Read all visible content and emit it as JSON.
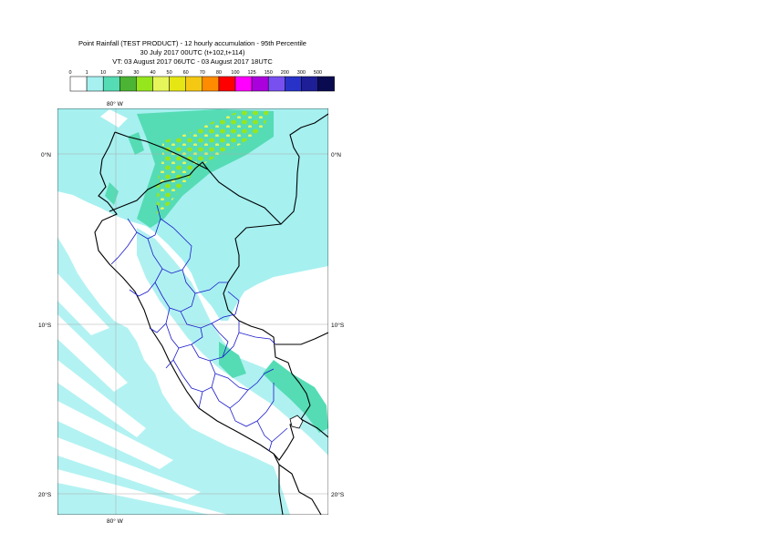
{
  "title": {
    "line1": "Point Rainfall (TEST PRODUCT) - 12 hourly accumulation - 95th Percentile",
    "line2": "30 July 2017 00UTC (t+102,t+114)",
    "line3": "VT: 03 August 2017 06UTC - 03 August 2017 18UTC"
  },
  "legend": {
    "thresholds": [
      "0",
      "1",
      "10",
      "20",
      "30",
      "40",
      "50",
      "60",
      "70",
      "80",
      "100",
      "125",
      "150",
      "200",
      "300",
      "500"
    ],
    "colors": [
      "#ffffff",
      "#a6f0f0",
      "#55dcb4",
      "#4cb434",
      "#96e61e",
      "#e6f55a",
      "#e6e614",
      "#f5c814",
      "#ff8c00",
      "#ff0000",
      "#ff00ff",
      "#aa00dc",
      "#7850f0",
      "#2832c8",
      "#1e1e96",
      "#0a0a50"
    ]
  },
  "map": {
    "lon_labels": {
      "top": "80° W",
      "bottom": "80° W"
    },
    "lat_labels": {
      "eq": "0°N",
      "s10": "10°S",
      "s20": "20°S"
    }
  }
}
